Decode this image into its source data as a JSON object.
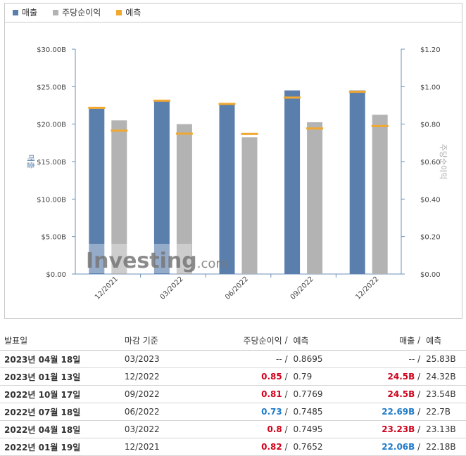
{
  "legend": {
    "revenue_label": "매출",
    "eps_label": "주당순이익",
    "forecast_label": "예측"
  },
  "colors": {
    "revenue": "#5b7fad",
    "eps": "#b3b3b3",
    "forecast": "#f0a830",
    "beat": "#d0021b",
    "miss": "#1f7bc9"
  },
  "chart_data": {
    "type": "bar",
    "categories": [
      "12/2021",
      "03/2022",
      "06/2022",
      "09/2022",
      "12/2022"
    ],
    "series": [
      {
        "name": "매출",
        "axis": "left",
        "values": [
          22.06,
          23.23,
          22.69,
          24.5,
          24.5
        ],
        "forecast": [
          22.18,
          23.13,
          22.7,
          23.54,
          24.32
        ]
      },
      {
        "name": "주당순이익",
        "axis": "right",
        "values": [
          0.82,
          0.8,
          0.73,
          0.81,
          0.85
        ],
        "forecast": [
          0.7652,
          0.7495,
          0.7485,
          0.7769,
          0.79
        ]
      }
    ],
    "ylabel": "매출",
    "y2label": "주당순이익",
    "ylim": [
      0,
      30
    ],
    "y2lim": [
      0,
      1.2
    ],
    "yticks": [
      "$0.00",
      "$5.00B",
      "$10.00B",
      "$15.00B",
      "$20.00B",
      "$25.00B",
      "$30.00B"
    ],
    "y2ticks": [
      "$0.00",
      "$0.20",
      "$0.40",
      "$0.60",
      "$0.80",
      "$1.00",
      "$1.20"
    ],
    "watermark": "Investing.com"
  },
  "table": {
    "headers": {
      "date": "발표일",
      "period": "마감 기준",
      "eps": "주당순이익",
      "sep": "/",
      "eps_forecast": "예측",
      "revenue": "매출",
      "revenue_forecast": "예측"
    },
    "rows": [
      {
        "date": "2023년 04월 18일",
        "period": "03/2023",
        "eps": "--",
        "eps_forecast": "0.8695",
        "revenue": "--",
        "revenue_forecast": "25.83B",
        "eps_state": "dash",
        "rev_state": "dash"
      },
      {
        "date": "2023년 01월 13일",
        "period": "12/2022",
        "eps": "0.85",
        "eps_forecast": "0.79",
        "revenue": "24.5B",
        "revenue_forecast": "24.32B",
        "eps_state": "pos",
        "rev_state": "pos"
      },
      {
        "date": "2022년 10월 17일",
        "period": "09/2022",
        "eps": "0.81",
        "eps_forecast": "0.7769",
        "revenue": "24.5B",
        "revenue_forecast": "23.54B",
        "eps_state": "pos",
        "rev_state": "pos"
      },
      {
        "date": "2022년 07월 18일",
        "period": "06/2022",
        "eps": "0.73",
        "eps_forecast": "0.7485",
        "revenue": "22.69B",
        "revenue_forecast": "22.7B",
        "eps_state": "neg",
        "rev_state": "neg"
      },
      {
        "date": "2022년 04월 18일",
        "period": "03/2022",
        "eps": "0.8",
        "eps_forecast": "0.7495",
        "revenue": "23.23B",
        "revenue_forecast": "23.13B",
        "eps_state": "pos",
        "rev_state": "pos"
      },
      {
        "date": "2022년 01월 19일",
        "period": "12/2021",
        "eps": "0.82",
        "eps_forecast": "0.7652",
        "revenue": "22.06B",
        "revenue_forecast": "22.18B",
        "eps_state": "pos",
        "rev_state": "neg"
      }
    ]
  }
}
